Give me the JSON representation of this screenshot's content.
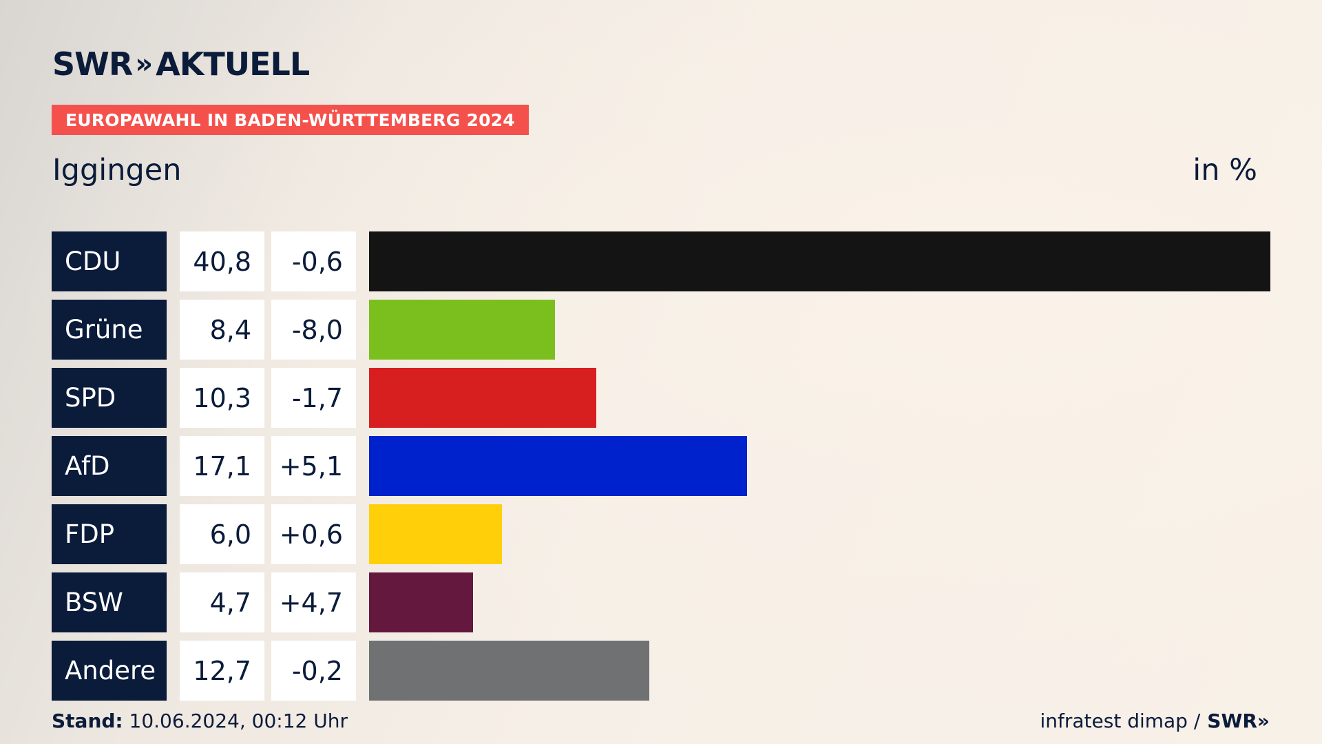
{
  "brand": {
    "logo_text": "SWR",
    "logo_chevrons": "»",
    "logo_suffix": "AKTUELL"
  },
  "badge": "EUROPAWAHL IN BADEN-WÜRTTEMBERG 2024",
  "subtitle": "Iggingen",
  "unit": "in %",
  "footer": {
    "stand_label": "Stand:",
    "stand_value": "10.06.2024, 00:12 Uhr",
    "source": "infratest dimap /",
    "source_brand": "SWR»"
  },
  "chart_data": {
    "type": "bar",
    "orientation": "horizontal",
    "title": "Iggingen",
    "unit": "in %",
    "xlim": [
      0,
      40.8
    ],
    "categories": [
      "CDU",
      "Grüne",
      "SPD",
      "AfD",
      "FDP",
      "BSW",
      "Andere"
    ],
    "values": [
      40.8,
      8.4,
      10.3,
      17.1,
      6.0,
      4.7,
      12.7
    ],
    "value_labels": [
      "40,8",
      "8,4",
      "10,3",
      "17,1",
      "6,0",
      "4,7",
      "12,7"
    ],
    "diff_labels": [
      "-0,6",
      "-8,0",
      "-1,7",
      "+5,1",
      "+0,6",
      "+4,7",
      "-0,2"
    ],
    "diffs": [
      -0.6,
      -8.0,
      -1.7,
      5.1,
      0.6,
      4.7,
      -0.2
    ],
    "colors": [
      "#141414",
      "#7bbf1e",
      "#d81f20",
      "#0022cc",
      "#ffd00a",
      "#64183d",
      "#707173"
    ]
  }
}
